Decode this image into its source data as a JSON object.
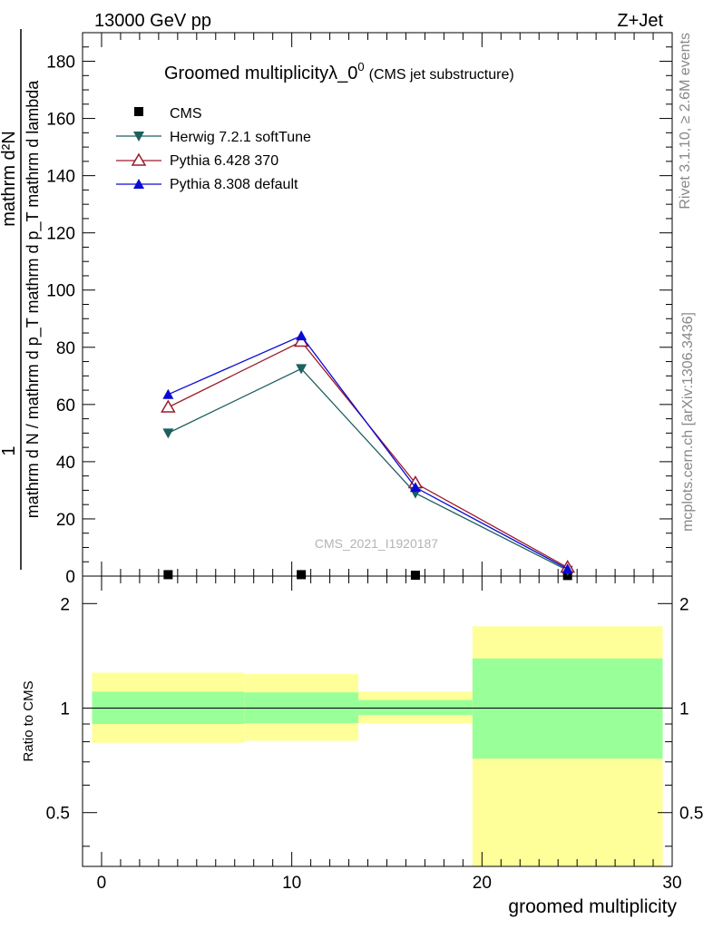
{
  "header": {
    "energy_label": "13000 GeV pp",
    "process_label": "Z+Jet"
  },
  "side_labels": {
    "rivet": "Rivet 3.1.10, ≥ 2.6M events",
    "mcplots": "mcplots.cern.ch [arXiv:1306.3436]"
  },
  "watermark": "CMS_2021_I1920187",
  "colors": {
    "cms": "#000000",
    "herwig": "#1e5f5f",
    "pythia6": "#9b1c2c",
    "pythia8": "#0a0ad2",
    "band_inner": "#99ff99",
    "band_outer": "#ffff99"
  },
  "chart_data": [
    {
      "type": "line",
      "title_main": "Groomed multiplicityλ_0",
      "title_sup": "0",
      "title_note": "(CMS jet substructure)",
      "ylabel_numerator": "mathrm d²N",
      "ylabel_one": "1",
      "ylabel_denominator": "mathrm d N / mathrm d p_T mathrm d p_T mathrm d lambda",
      "xlim": [
        -1,
        30
      ],
      "ylim": [
        0,
        190
      ],
      "yticks": [
        "0",
        "20",
        "40",
        "60",
        "80",
        "100",
        "120",
        "140",
        "160",
        "180"
      ],
      "legend_position": "top-left",
      "series": [
        {
          "name": "CMS",
          "marker": "square",
          "x": [
            3.5,
            10.5,
            16.5,
            24.5
          ],
          "y": [
            0.5,
            0.5,
            0.3,
            0.2
          ]
        },
        {
          "name": "Herwig 7.2.1 softTune",
          "marker": "triangle-down",
          "x": [
            3.5,
            10.5,
            16.5,
            24.5
          ],
          "y": [
            50,
            72.5,
            29,
            2
          ]
        },
        {
          "name": "Pythia 6.428 370",
          "marker": "triangle-up-open",
          "x": [
            3.5,
            10.5,
            16.5,
            24.5
          ],
          "y": [
            59,
            82,
            32.5,
            3
          ]
        },
        {
          "name": "Pythia 8.308 default",
          "marker": "triangle-up",
          "x": [
            3.5,
            10.5,
            16.5,
            24.5
          ],
          "y": [
            63.5,
            84,
            31,
            2.5
          ]
        }
      ]
    },
    {
      "type": "area",
      "ylabel": "Ratio to CMS",
      "xlabel": "groomed multiplicity",
      "xlim": [
        -1,
        30
      ],
      "ylim": [
        0.35,
        2.4
      ],
      "ytick_values": [
        0.5,
        1,
        2
      ],
      "ytick_labels": [
        "0.5",
        "1",
        "2"
      ],
      "xtick_values": [
        0,
        10,
        20,
        30
      ],
      "xtick_labels": [
        "0",
        "10",
        "20",
        "30"
      ],
      "bands": [
        {
          "x_low": -0.5,
          "x_high": 7.5,
          "inner_low": 0.9,
          "inner_high": 1.115,
          "outer_low": 0.795,
          "outer_high": 1.265
        },
        {
          "x_low": 7.5,
          "x_high": 13.5,
          "inner_low": 0.905,
          "inner_high": 1.11,
          "outer_low": 0.805,
          "outer_high": 1.255
        },
        {
          "x_low": 13.5,
          "x_high": 19.5,
          "inner_low": 0.955,
          "inner_high": 1.055,
          "outer_low": 0.905,
          "outer_high": 1.115
        },
        {
          "x_low": 19.5,
          "x_high": 29.5,
          "inner_low": 0.715,
          "inner_high": 1.39,
          "outer_low": 0.35,
          "outer_high": 1.72
        }
      ]
    }
  ]
}
